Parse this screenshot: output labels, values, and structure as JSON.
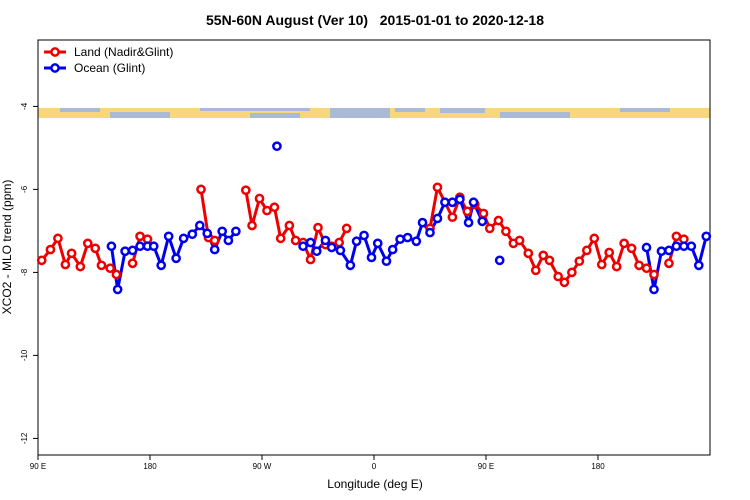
{
  "chart_data": {
    "type": "line",
    "title": "55N-60N August (Ver 10)   2015-01-01 to 2020-12-18",
    "xlabel": "Longitude (deg E)",
    "ylabel": "XCO2 - MLO trend (ppm)",
    "xlim": [
      90,
      630
    ],
    "xticks": [
      {
        "value": 90,
        "label": "90 E"
      },
      180,
      {
        "value": 270,
        "label": "90 W"
      },
      {
        "value": 360,
        "label": "0"
      },
      {
        "value": 450,
        "label": "90 E"
      },
      {
        "value": 540,
        "label": "180"
      }
    ],
    "ylim": [
      -12.4,
      -2.4
    ],
    "yticks": [
      -4,
      -6,
      -8,
      -10,
      -12
    ],
    "legend_position": "top-left",
    "series": [
      {
        "name": "Land (Nadir&Glint)",
        "color": "#ee0000",
        "x": [
          93,
          100,
          106,
          112,
          117,
          124,
          130,
          136,
          141,
          148,
          153,
          null,
          166,
          172,
          178,
          null,
          221,
          227,
          232,
          null,
          257,
          262,
          268,
          274,
          280,
          285,
          292,
          297,
          303,
          309,
          315,
          321,
          326,
          332,
          338,
          null,
          405,
          411,
          423,
          429,
          435,
          441,
          448,
          453,
          460,
          466,
          472,
          477,
          484,
          490,
          496,
          501,
          508,
          513,
          519,
          525,
          531,
          537,
          543,
          549,
          555,
          561,
          567,
          573,
          579,
          585,
          null,
          597,
          603,
          609
        ],
        "values": [
          -7.71,
          -7.45,
          -7.18,
          -7.81,
          -7.54,
          -7.86,
          -7.3,
          -7.42,
          -7.83,
          -7.9,
          -8.05,
          null,
          -7.78,
          -7.13,
          -7.2,
          null,
          -6.0,
          -7.16,
          -7.23,
          null,
          -6.02,
          -6.87,
          -6.22,
          -6.51,
          -6.43,
          -7.18,
          -6.87,
          -7.23,
          -7.28,
          -7.69,
          -6.92,
          -7.33,
          -7.37,
          -7.28,
          -6.94,
          null,
          -6.94,
          -5.95,
          -6.67,
          -6.19,
          -6.53,
          -6.36,
          -6.58,
          -6.94,
          -6.75,
          -7.01,
          -7.3,
          -7.23,
          -7.54,
          -7.95,
          -7.59,
          -7.71,
          -8.1,
          -8.24,
          -8.0,
          -7.73,
          -7.47,
          -7.18,
          -7.81,
          -7.52,
          -7.86,
          -7.3,
          -7.42,
          -7.83,
          -7.9,
          -8.05,
          null,
          -7.78,
          -7.13,
          -7.2
        ]
      },
      {
        "name": "Ocean (Glint)",
        "color": "#0000ee",
        "x": [
          149,
          154,
          160,
          166,
          172,
          178,
          183,
          189,
          195,
          201,
          207,
          214,
          220,
          226,
          232,
          238,
          243,
          249,
          null,
          282,
          null,
          303,
          309,
          314,
          321,
          326,
          333,
          341,
          346,
          352,
          358,
          363,
          370,
          375,
          381,
          387,
          394,
          399,
          405,
          411,
          417,
          423,
          429,
          436,
          440,
          447,
          null,
          461,
          null,
          579,
          585,
          591,
          597,
          603,
          609,
          615,
          621,
          627
        ],
        "values": [
          -7.37,
          -8.41,
          -7.49,
          -7.47,
          -7.37,
          -7.37,
          -7.37,
          -7.83,
          -7.13,
          -7.66,
          -7.18,
          -7.08,
          -6.87,
          -7.06,
          -7.45,
          -7.01,
          -7.23,
          -7.01,
          null,
          -4.96,
          null,
          -7.37,
          -7.28,
          -7.49,
          -7.23,
          -7.4,
          -7.47,
          -7.83,
          -7.25,
          -7.11,
          -7.64,
          -7.3,
          -7.73,
          -7.45,
          -7.2,
          -7.16,
          -7.25,
          -6.8,
          -7.04,
          -6.7,
          -6.31,
          -6.31,
          -6.24,
          -6.8,
          -6.31,
          -6.77,
          null,
          -7.71,
          null,
          -7.4,
          -8.41,
          -7.49,
          -7.47,
          -7.37,
          -7.37,
          -7.37,
          -7.83,
          -7.13
        ]
      }
    ]
  }
}
